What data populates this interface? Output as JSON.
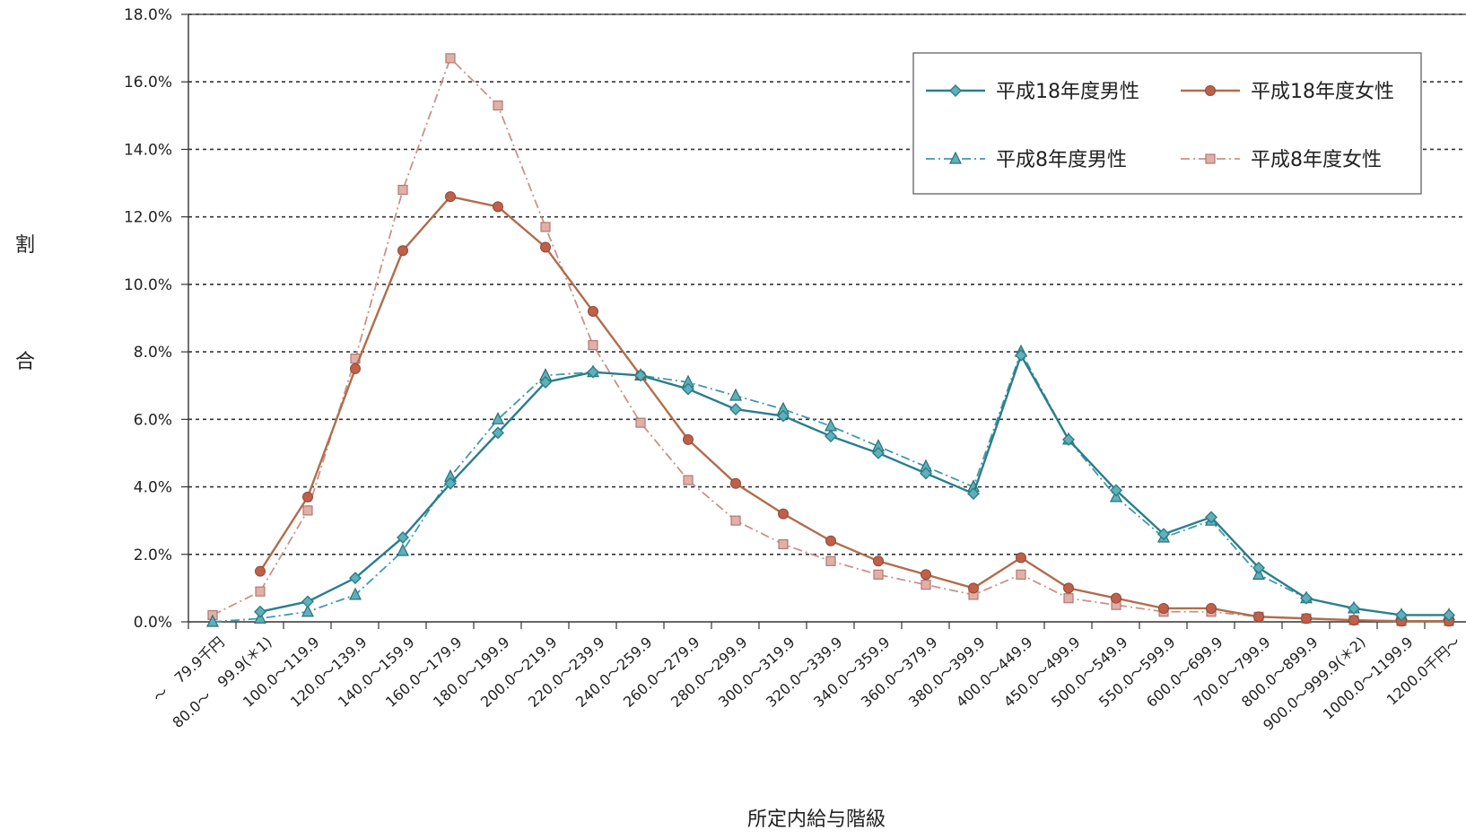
{
  "chart_data": {
    "type": "line",
    "title": "",
    "xlabel": "所定内給与階級",
    "ylabel": [
      "割",
      "合"
    ],
    "ylim": [
      0,
      18
    ],
    "y_tick_labels": [
      "0.0%",
      "2.0%",
      "4.0%",
      "6.0%",
      "8.0%",
      "10.0%",
      "12.0%",
      "14.0%",
      "16.0%",
      "18.0%"
    ],
    "grid": true,
    "legend_position": "top-right",
    "categories": [
      "～　79.9千円",
      "80.0～　99.9(＊1)",
      "100.0～119.9",
      "120.0～139.9",
      "140.0～159.9",
      "160.0～179.9",
      "180.0～199.9",
      "200.0～219.9",
      "220.0～239.9",
      "240.0～259.9",
      "260.0～279.9",
      "280.0～299.9",
      "300.0～319.9",
      "320.0～339.9",
      "340.0～359.9",
      "360.0～379.9",
      "380.0～399.9",
      "400.0～449.9",
      "450.0～499.9",
      "500.0～549.9",
      "550.0～599.9",
      "600.0～699.9",
      "700.0～799.9",
      "800.0～899.9",
      "900.0～999.9(＊2)",
      "1000.0～1199.9",
      "1200.0千円～"
    ],
    "series": [
      {
        "name": "平成18年度男性",
        "color": "#2a7e8c",
        "marker": "diamond",
        "dash": "solid",
        "values": [
          null,
          0.3,
          0.6,
          1.3,
          2.5,
          4.1,
          5.6,
          7.1,
          7.4,
          7.3,
          6.9,
          6.3,
          6.1,
          5.5,
          5.0,
          4.4,
          3.8,
          7.9,
          5.4,
          3.9,
          2.6,
          3.1,
          1.6,
          0.7,
          0.4,
          0.2,
          0.2
        ]
      },
      {
        "name": "平成18年度女性",
        "color": "#b06d4c",
        "marker": "circle",
        "dash": "solid",
        "values": [
          null,
          1.5,
          3.7,
          7.5,
          11.0,
          12.6,
          12.3,
          11.1,
          9.2,
          7.3,
          5.4,
          4.1,
          3.2,
          2.4,
          1.8,
          1.4,
          1.0,
          1.9,
          1.0,
          0.7,
          0.4,
          0.4,
          0.15,
          0.1,
          0.05,
          0.02,
          0.02
        ]
      },
      {
        "name": "平成8年度男性",
        "color": "#3f9aa8",
        "marker": "triangle",
        "dash": "dashdot",
        "values": [
          0.0,
          0.1,
          0.3,
          0.8,
          2.1,
          4.3,
          6.0,
          7.3,
          7.4,
          7.3,
          7.1,
          6.7,
          6.3,
          5.8,
          5.2,
          4.6,
          4.0,
          8.0,
          5.4,
          3.7,
          2.5,
          3.0,
          1.4,
          0.7,
          0.4,
          0.2,
          0.2
        ]
      },
      {
        "name": "平成8年度女性",
        "color": "#c9928a",
        "marker": "square",
        "dash": "dashdot",
        "values": [
          0.2,
          0.9,
          3.3,
          7.8,
          12.8,
          16.7,
          15.3,
          11.7,
          8.2,
          5.9,
          4.2,
          3.0,
          2.3,
          1.8,
          1.4,
          1.1,
          0.8,
          1.4,
          0.7,
          0.5,
          0.3,
          0.3,
          0.15,
          0.1,
          0.05,
          0.02,
          0.02
        ]
      }
    ]
  }
}
